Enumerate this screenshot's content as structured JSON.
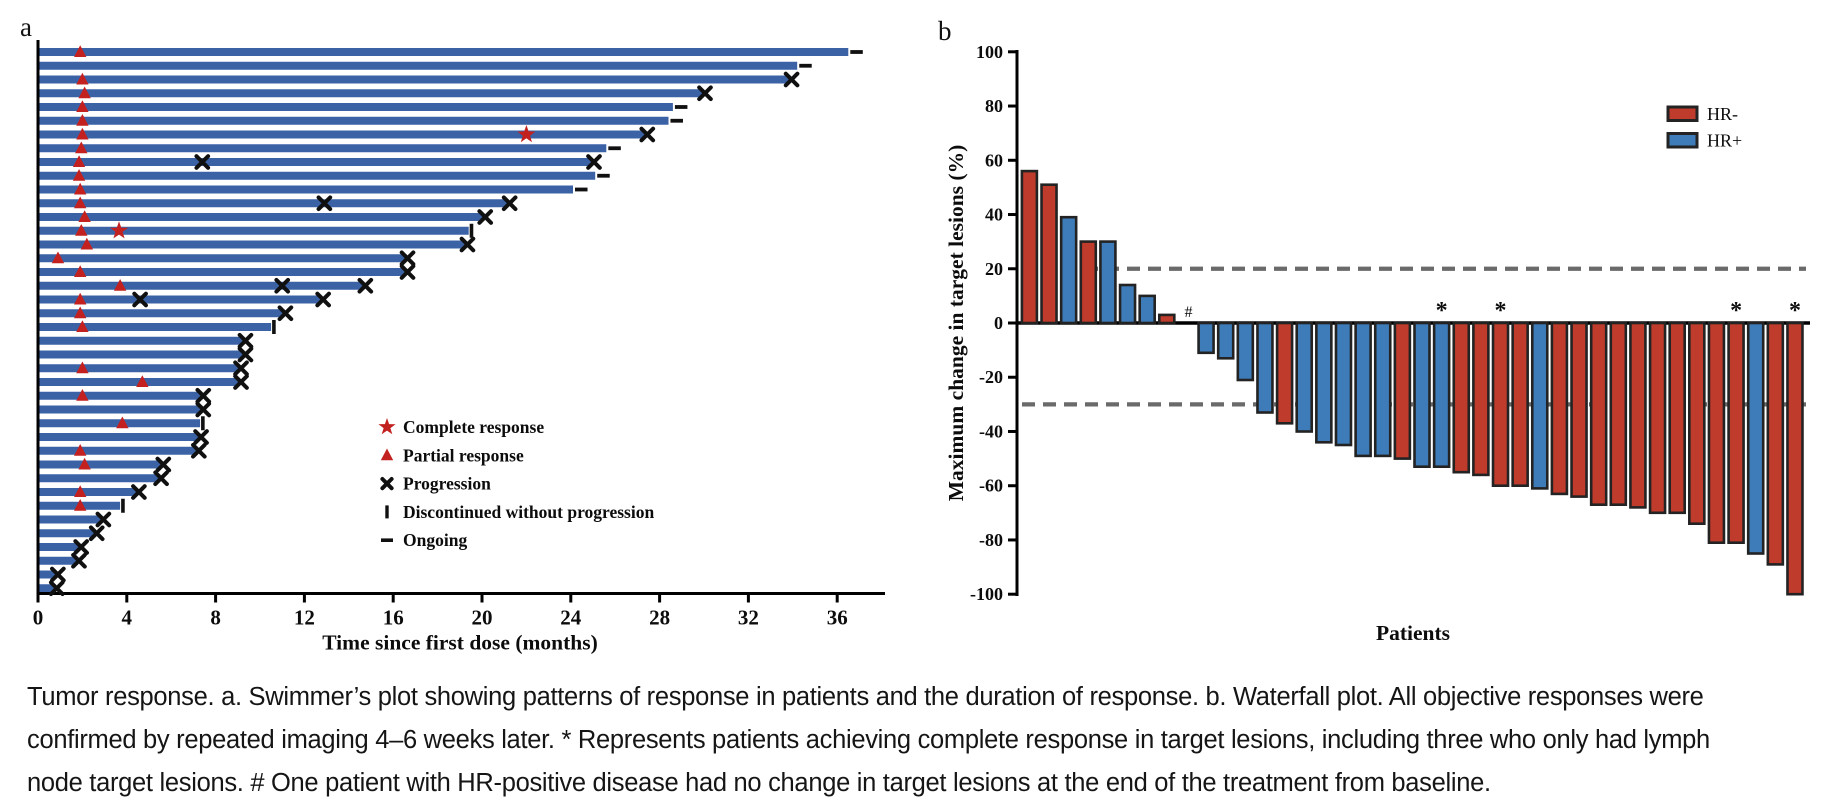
{
  "panels": {
    "a": {
      "label": "a"
    },
    "b": {
      "label": "b"
    }
  },
  "caption": {
    "lines": [
      "Tumor response. a. Swimmer’s plot showing patterns of response in patients and the duration of response. b. Waterfall plot. All objective responses were",
      "confirmed by repeated imaging 4–6 weeks later. * Represents patients achieving complete response in target lesions, including three who only had lymph",
      "node target lesions. # One patient with HR-positive disease had no change in target lesions at the end of the treatment from baseline."
    ]
  },
  "colors": {
    "swimmer_bar": "#3a62a5",
    "response_red": "#c32120",
    "marker_black": "#101010",
    "hr_neg": "#bf3b2b",
    "hr_pos": "#3d7cb8",
    "bar_outline": "#232323",
    "dashed_line": "#6a6a6a",
    "axis": "#000000"
  },
  "chart_data": [
    {
      "type": "swimmer",
      "xlabel": "Time since first dose (months)",
      "x_ticks": [
        0,
        4,
        8,
        12,
        16,
        20,
        24,
        28,
        32,
        36
      ],
      "xlim": [
        0,
        38
      ],
      "x_unit": "months",
      "legend": [
        {
          "marker": "star",
          "label": "Complete response"
        },
        {
          "marker": "triangle",
          "label": "Partial response"
        },
        {
          "marker": "x",
          "label": "Progression"
        },
        {
          "marker": "bar",
          "label": "Discontinued without progression"
        },
        {
          "marker": "dash",
          "label": "Ongoing"
        }
      ],
      "bars": [
        {
          "duration": 36.5,
          "end": "ongoing",
          "partial_response_at": 1.9
        },
        {
          "duration": 34.2,
          "end": "ongoing"
        },
        {
          "duration": 33.9,
          "end": "progression",
          "partial_response_at": 2.0
        },
        {
          "duration": 30.0,
          "end": "progression",
          "partial_response_at": 2.1
        },
        {
          "duration": 28.6,
          "end": "ongoing",
          "partial_response_at": 2.0
        },
        {
          "duration": 28.4,
          "end": "ongoing",
          "partial_response_at": 2.0
        },
        {
          "duration": 27.4,
          "end": "progression",
          "partial_response_at": 2.0,
          "complete_response_at": 22.0
        },
        {
          "duration": 25.6,
          "end": "ongoing",
          "partial_response_at": 1.95
        },
        {
          "duration": 25.0,
          "end": "progression",
          "partial_response_at": 1.85,
          "progression_marks": [
            7.4
          ]
        },
        {
          "duration": 25.1,
          "end": "ongoing",
          "partial_response_at": 1.85
        },
        {
          "duration": 24.1,
          "end": "ongoing",
          "partial_response_at": 1.9
        },
        {
          "duration": 21.2,
          "end": "progression",
          "partial_response_at": 1.9,
          "progression_marks": [
            12.9
          ]
        },
        {
          "duration": 20.1,
          "end": "progression",
          "partial_response_at": 2.1
        },
        {
          "duration": 19.4,
          "end": "discontinued",
          "partial_response_at": 1.95,
          "complete_response_at": 3.65
        },
        {
          "duration": 19.3,
          "end": "progression",
          "partial_response_at": 2.2
        },
        {
          "duration": 16.6,
          "end": "progression",
          "partial_response_at": 0.9
        },
        {
          "duration": 16.6,
          "end": "progression",
          "partial_response_at": 1.9
        },
        {
          "duration": 14.7,
          "end": "progression",
          "partial_response_at": 3.7,
          "progression_marks": [
            11.0
          ]
        },
        {
          "duration": 12.8,
          "end": "progression",
          "partial_response_at": 1.9,
          "progression_marks": [
            4.6
          ]
        },
        {
          "duration": 11.1,
          "end": "progression",
          "partial_response_at": 1.9
        },
        {
          "duration": 10.5,
          "end": "discontinued",
          "partial_response_at": 2.0
        },
        {
          "duration": 9.3,
          "end": "progression"
        },
        {
          "duration": 9.3,
          "end": "progression"
        },
        {
          "duration": 9.1,
          "end": "progression",
          "partial_response_at": 2.0
        },
        {
          "duration": 9.1,
          "end": "progression",
          "partial_response_at": 4.7
        },
        {
          "duration": 7.4,
          "end": "progression",
          "partial_response_at": 2.0
        },
        {
          "duration": 7.4,
          "end": "progression"
        },
        {
          "duration": 7.3,
          "end": "discontinued",
          "partial_response_at": 3.8
        },
        {
          "duration": 7.3,
          "end": "progression"
        },
        {
          "duration": 7.2,
          "end": "progression",
          "partial_response_at": 1.9
        },
        {
          "duration": 5.6,
          "end": "progression",
          "partial_response_at": 2.1
        },
        {
          "duration": 5.5,
          "end": "progression"
        },
        {
          "duration": 4.5,
          "end": "progression",
          "partial_response_at": 1.9
        },
        {
          "duration": 3.7,
          "end": "discontinued",
          "partial_response_at": 1.9
        },
        {
          "duration": 2.9,
          "end": "progression"
        },
        {
          "duration": 2.6,
          "end": "progression"
        },
        {
          "duration": 1.9,
          "end": "progression"
        },
        {
          "duration": 1.8,
          "end": "progression"
        },
        {
          "duration": 0.85,
          "end": "progression"
        },
        {
          "duration": 0.8,
          "end": "progression"
        }
      ]
    },
    {
      "type": "waterfall",
      "xlabel": "Patients",
      "ylabel": "Maximum change in target lesions (%)",
      "y_ticks": [
        100,
        80,
        60,
        40,
        20,
        0,
        -20,
        -40,
        -60,
        -80,
        -100
      ],
      "ylim": [
        -100,
        100
      ],
      "reference_lines": [
        20,
        -30
      ],
      "legend": [
        {
          "label": "HR-",
          "color_key": "hr_neg"
        },
        {
          "label": "HR+",
          "color_key": "hr_pos"
        }
      ],
      "patients": [
        {
          "value": 56,
          "hr": "HR-"
        },
        {
          "value": 51,
          "hr": "HR-"
        },
        {
          "value": 39,
          "hr": "HR+"
        },
        {
          "value": 30,
          "hr": "HR-"
        },
        {
          "value": 30,
          "hr": "HR+"
        },
        {
          "value": 14,
          "hr": "HR+"
        },
        {
          "value": 10,
          "hr": "HR+"
        },
        {
          "value": 3,
          "hr": "HR-"
        },
        {
          "value": 0,
          "hr": "HR+",
          "annotation": "#"
        },
        {
          "value": -11,
          "hr": "HR+"
        },
        {
          "value": -13,
          "hr": "HR+"
        },
        {
          "value": -21,
          "hr": "HR+"
        },
        {
          "value": -33,
          "hr": "HR+"
        },
        {
          "value": -37,
          "hr": "HR-"
        },
        {
          "value": -40,
          "hr": "HR+"
        },
        {
          "value": -44,
          "hr": "HR+"
        },
        {
          "value": -45,
          "hr": "HR+"
        },
        {
          "value": -49,
          "hr": "HR+"
        },
        {
          "value": -49,
          "hr": "HR+"
        },
        {
          "value": -50,
          "hr": "HR-"
        },
        {
          "value": -53,
          "hr": "HR+"
        },
        {
          "value": -53,
          "hr": "HR+",
          "annotation": "*"
        },
        {
          "value": -55,
          "hr": "HR-"
        },
        {
          "value": -56,
          "hr": "HR-"
        },
        {
          "value": -60,
          "hr": "HR-",
          "annotation": "*"
        },
        {
          "value": -60,
          "hr": "HR-"
        },
        {
          "value": -61,
          "hr": "HR+"
        },
        {
          "value": -63,
          "hr": "HR-"
        },
        {
          "value": -64,
          "hr": "HR-"
        },
        {
          "value": -67,
          "hr": "HR-"
        },
        {
          "value": -67,
          "hr": "HR-"
        },
        {
          "value": -68,
          "hr": "HR-"
        },
        {
          "value": -70,
          "hr": "HR-"
        },
        {
          "value": -70,
          "hr": "HR-"
        },
        {
          "value": -74,
          "hr": "HR-"
        },
        {
          "value": -81,
          "hr": "HR-"
        },
        {
          "value": -81,
          "hr": "HR-",
          "annotation": "*"
        },
        {
          "value": -85,
          "hr": "HR+"
        },
        {
          "value": -89,
          "hr": "HR-"
        },
        {
          "value": -100,
          "hr": "HR-",
          "annotation": "*"
        }
      ]
    }
  ]
}
